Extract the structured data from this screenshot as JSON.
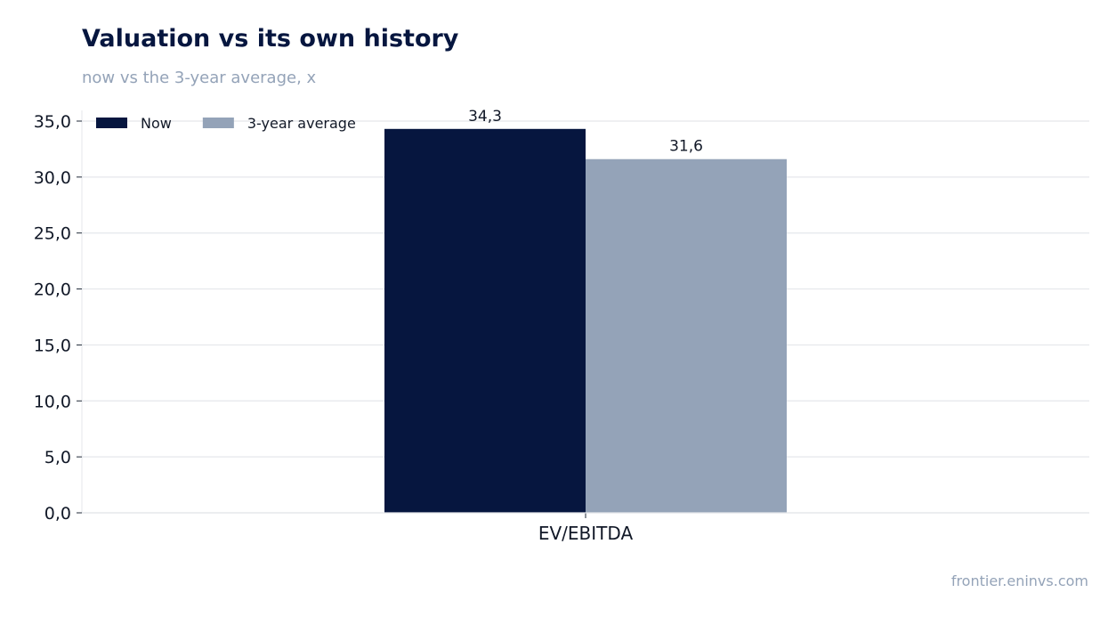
{
  "title": "Valuation vs its own history",
  "subtitle": "now vs the 3-year average, x",
  "source": "frontier.eninvs.com",
  "chart_data": {
    "type": "bar",
    "categories": [
      "EV/EBITDA"
    ],
    "series": [
      {
        "name": "Now",
        "values": [
          34.3
        ],
        "labels": [
          "34,3"
        ],
        "color": "#06163f"
      },
      {
        "name": "3-year average",
        "values": [
          31.6
        ],
        "labels": [
          "31,6"
        ],
        "color": "#94a3b8"
      }
    ],
    "ylim": [
      0,
      35
    ],
    "yticks": [
      0,
      5,
      10,
      15,
      20,
      25,
      30,
      35
    ],
    "ytick_labels": [
      "0,0",
      "5,0",
      "10,0",
      "15,0",
      "20,0",
      "25,0",
      "30,0",
      "35,0"
    ],
    "legend_position": "top-left",
    "grid": true
  }
}
